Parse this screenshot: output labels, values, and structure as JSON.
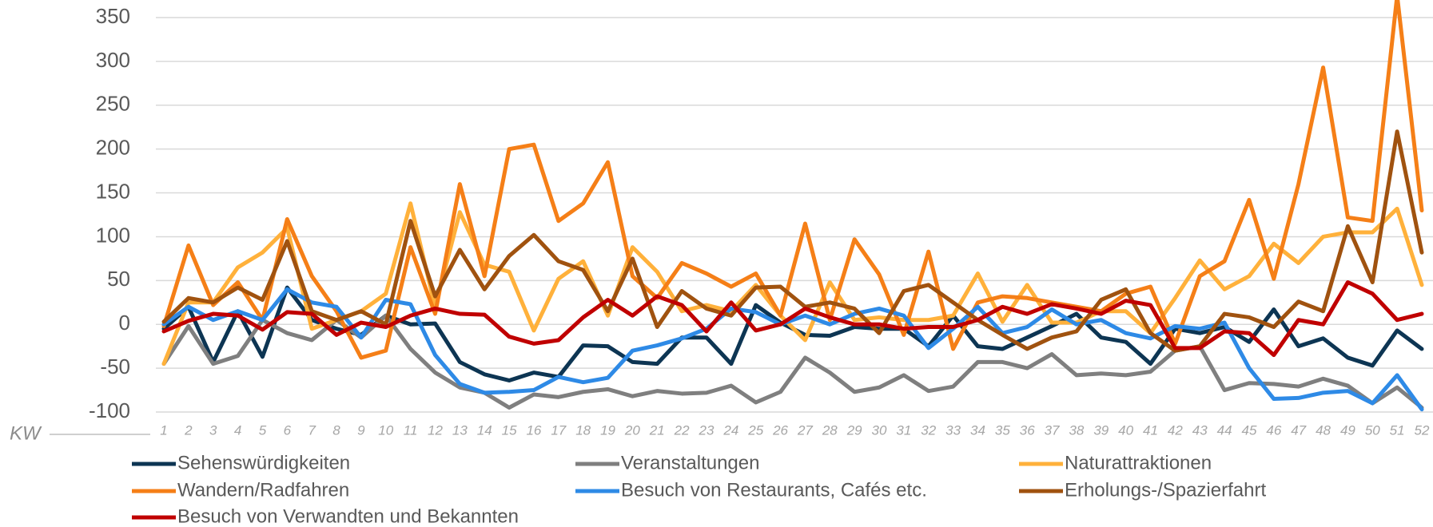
{
  "chart_data": {
    "type": "line",
    "x_label": "KW",
    "categories": [
      "1",
      "2",
      "3",
      "4",
      "5",
      "6",
      "7",
      "8",
      "9",
      "10",
      "11",
      "12",
      "13",
      "14",
      "15",
      "16",
      "17",
      "18",
      "19",
      "20",
      "21",
      "22",
      "23",
      "24",
      "25",
      "26",
      "27",
      "28",
      "29",
      "30",
      "31",
      "32",
      "33",
      "34",
      "35",
      "36",
      "37",
      "38",
      "39",
      "40",
      "41",
      "42",
      "43",
      "44",
      "45",
      "46",
      "47",
      "48",
      "49",
      "50",
      "51",
      "52"
    ],
    "ylim": [
      -100,
      350
    ],
    "yticks": [
      -100,
      -50,
      0,
      50,
      100,
      150,
      200,
      250,
      300,
      350
    ],
    "grid": true,
    "legend": "bottom",
    "series": [
      {
        "name": "Sehenswürdigkeiten",
        "color": "#0d3553",
        "values": [
          -5,
          20,
          -43,
          15,
          -37,
          42,
          5,
          -5,
          -12,
          10,
          0,
          1,
          -43,
          -57,
          -64,
          -55,
          -60,
          -24,
          -25,
          -43,
          -45,
          -15,
          -15,
          -45,
          22,
          2,
          -12,
          -13,
          -3,
          -5,
          -5,
          -25,
          10,
          -25,
          -28,
          -15,
          -2,
          12,
          -15,
          -20,
          -45,
          -5,
          -10,
          -3,
          -20,
          17,
          -25,
          -16,
          -38,
          -47,
          -7,
          -28
        ]
      },
      {
        "name": "Veranstaltungen",
        "color": "#7f7f7f",
        "values": [
          -45,
          -2,
          -45,
          -36,
          5,
          -10,
          -18,
          5,
          -15,
          10,
          -28,
          -55,
          -72,
          -78,
          -95,
          -80,
          -83,
          -77,
          -74,
          -82,
          -76,
          -79,
          -78,
          -70,
          -89,
          -77,
          -38,
          -55,
          -77,
          -72,
          -58,
          -76,
          -71,
          -43,
          -43,
          -50,
          -34,
          -58,
          -56,
          -58,
          -54,
          -30,
          -25,
          -75,
          -67,
          -68,
          -71,
          -62,
          -70,
          -90,
          -72,
          -95
        ]
      },
      {
        "name": "Naturattraktionen",
        "color": "#ffb13b",
        "values": [
          -45,
          25,
          25,
          65,
          82,
          110,
          -5,
          5,
          15,
          35,
          138,
          20,
          128,
          68,
          60,
          -7,
          52,
          72,
          10,
          88,
          60,
          15,
          22,
          15,
          45,
          10,
          -18,
          48,
          5,
          8,
          5,
          5,
          10,
          58,
          3,
          45,
          2,
          2,
          15,
          15,
          -10,
          30,
          73,
          40,
          55,
          92,
          70,
          100,
          105,
          105,
          132,
          45
        ]
      },
      {
        "name": "Wandern/Radfahren",
        "color": "#f57f17",
        "values": [
          -2,
          90,
          22,
          48,
          5,
          120,
          55,
          15,
          -38,
          -30,
          88,
          12,
          160,
          55,
          200,
          205,
          118,
          138,
          185,
          55,
          30,
          70,
          58,
          43,
          58,
          10,
          115,
          5,
          97,
          57,
          -12,
          83,
          -28,
          25,
          32,
          30,
          25,
          20,
          15,
          35,
          43,
          -22,
          55,
          72,
          142,
          52,
          160,
          293,
          122,
          118,
          375,
          130
        ]
      },
      {
        "name": "Besuch von Restaurants, Cafés etc.",
        "color": "#2e8ae6",
        "values": [
          0,
          20,
          5,
          15,
          5,
          40,
          25,
          20,
          -15,
          28,
          23,
          -35,
          -68,
          -78,
          -77,
          -75,
          -60,
          -66,
          -61,
          -30,
          -24,
          -16,
          -5,
          18,
          14,
          0,
          10,
          0,
          12,
          18,
          10,
          -27,
          -5,
          20,
          -10,
          -3,
          17,
          0,
          5,
          -10,
          -16,
          -2,
          -5,
          2,
          -50,
          -85,
          -84,
          -78,
          -76,
          -90,
          -58,
          -97
        ]
      },
      {
        "name": "Erholungs-/Spazierfahrt",
        "color": "#a0520f",
        "values": [
          3,
          30,
          25,
          42,
          28,
          95,
          15,
          5,
          15,
          0,
          118,
          32,
          85,
          40,
          78,
          102,
          72,
          62,
          15,
          75,
          -3,
          38,
          18,
          10,
          42,
          43,
          20,
          25,
          18,
          -10,
          38,
          45,
          25,
          5,
          -12,
          -28,
          -15,
          -8,
          28,
          40,
          -10,
          -30,
          -25,
          12,
          8,
          -3,
          26,
          15,
          112,
          48,
          220,
          82
        ]
      },
      {
        "name": "Besuch von Verwandten und Bekannten",
        "color": "#c00000",
        "values": [
          -8,
          4,
          12,
          10,
          -6,
          14,
          12,
          -12,
          2,
          -3,
          10,
          18,
          12,
          11,
          -14,
          -22,
          -18,
          8,
          28,
          10,
          32,
          22,
          -8,
          25,
          -7,
          0,
          18,
          8,
          0,
          0,
          -5,
          -3,
          -3,
          5,
          20,
          12,
          23,
          18,
          12,
          27,
          22,
          -27,
          -27,
          -8,
          -10,
          -35,
          5,
          0,
          48,
          35,
          5,
          12
        ]
      }
    ]
  }
}
